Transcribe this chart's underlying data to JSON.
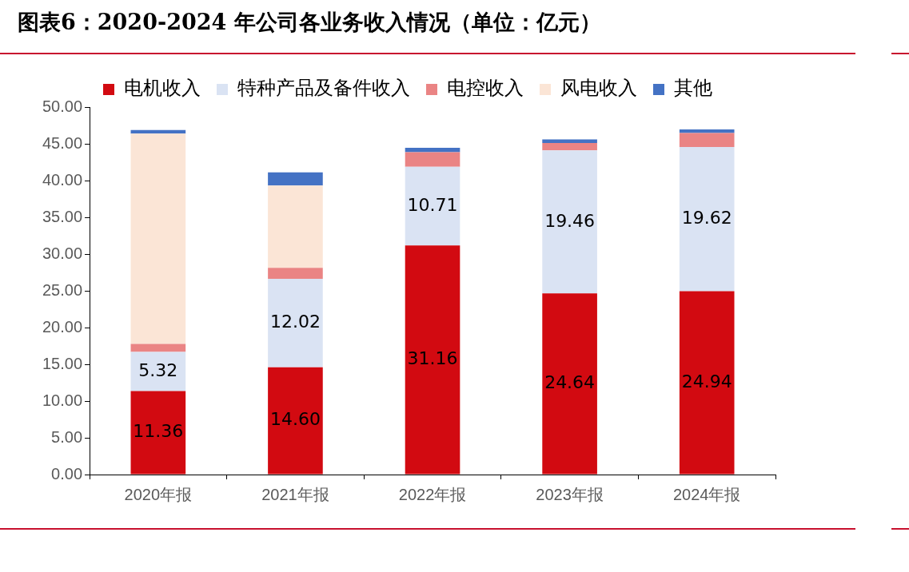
{
  "chart_data": {
    "type": "bar",
    "title": "图表6：2020-2024 年公司各业务收入情况（单位：亿元）",
    "stacked": true,
    "legend": "top",
    "grid": false,
    "categories": [
      "2020年报",
      "2021年报",
      "2022年报",
      "2023年报",
      "2024年报"
    ],
    "ylim": [
      0,
      50
    ],
    "yticks": [
      {
        "value": 0,
        "label": "0.00"
      },
      {
        "value": 5,
        "label": "5.00"
      },
      {
        "value": 10,
        "label": "10.00"
      },
      {
        "value": 15,
        "label": "15.00"
      },
      {
        "value": 20,
        "label": "20.00"
      },
      {
        "value": 25,
        "label": "25.00"
      },
      {
        "value": 30,
        "label": "30.00"
      },
      {
        "value": 35,
        "label": "35.00"
      },
      {
        "value": 40,
        "label": "40.00"
      },
      {
        "value": 45,
        "label": "45.00"
      },
      {
        "value": 50,
        "label": "50.00"
      }
    ],
    "series": [
      {
        "name": "电机收入",
        "color": "#d20a11",
        "values": [
          11.36,
          14.6,
          31.16,
          24.64,
          24.94
        ],
        "value_labels": [
          "11.36",
          "14.60",
          "31.16",
          "24.64",
          "24.94"
        ]
      },
      {
        "name": "特种产品及备件收入",
        "color": "#dae3f3",
        "values": [
          5.32,
          12.02,
          10.71,
          19.46,
          19.62
        ],
        "value_labels": [
          "5.32",
          "12.02",
          "10.71",
          "19.46",
          "19.62"
        ]
      },
      {
        "name": "电控收入",
        "color": "#ea8484",
        "values": [
          1.1,
          1.5,
          2.0,
          1.0,
          1.9
        ]
      },
      {
        "name": "风电收入",
        "color": "#fbe5d6",
        "values": [
          28.6,
          11.2,
          null,
          null,
          null
        ]
      },
      {
        "name": "其他",
        "color": "#4472c4",
        "values": [
          0.5,
          1.8,
          0.6,
          0.5,
          0.5
        ]
      }
    ]
  }
}
